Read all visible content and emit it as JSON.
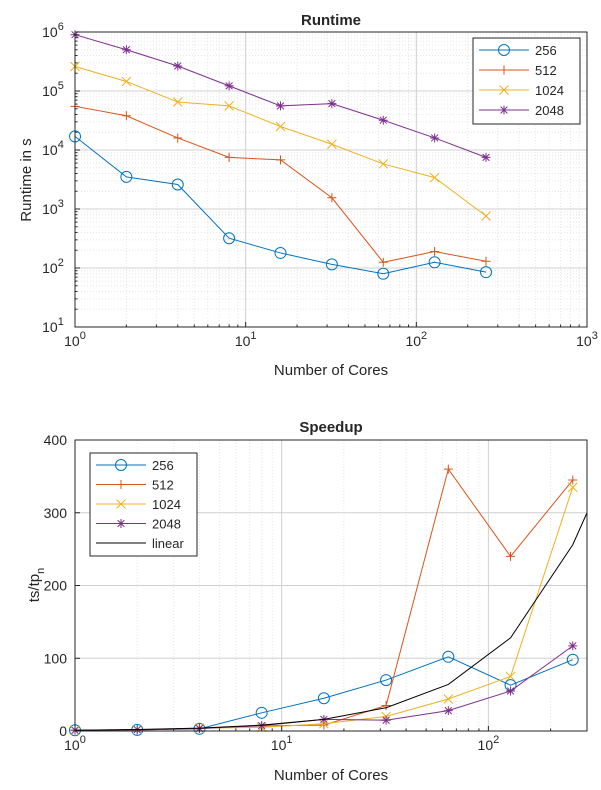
{
  "colors": {
    "256": "#0072BD",
    "512": "#D95319",
    "1024": "#EDB120",
    "2048": "#7E2F8E",
    "linear": "#000000",
    "axis": "#262626",
    "grid": "#d9d9d9"
  },
  "chart_data": [
    {
      "type": "line",
      "title": "Runtime",
      "xlabel": "Number of Cores",
      "ylabel": "Runtime in s",
      "xscale": "log",
      "yscale": "log",
      "xlim": [
        1,
        1000
      ],
      "ylim": [
        10,
        1000000
      ],
      "grid": true,
      "minor_grid": true,
      "legend_position": "top-right",
      "x_ticks": [
        {
          "base": "10",
          "exp": "0"
        },
        {
          "base": "10",
          "exp": "1"
        },
        {
          "base": "10",
          "exp": "2"
        },
        {
          "base": "10",
          "exp": "3"
        }
      ],
      "y_ticks": [
        {
          "base": "10",
          "exp": "1"
        },
        {
          "base": "10",
          "exp": "2"
        },
        {
          "base": "10",
          "exp": "3"
        },
        {
          "base": "10",
          "exp": "4"
        },
        {
          "base": "10",
          "exp": "5"
        },
        {
          "base": "10",
          "exp": "6"
        }
      ],
      "x": [
        1,
        2,
        4,
        8,
        16,
        32,
        64,
        128,
        256
      ],
      "series": [
        {
          "name": "256",
          "marker": "circle",
          "color": "#0072BD",
          "values": [
            17000,
            3500,
            2600,
            320,
            180,
            115,
            80,
            125,
            85
          ]
        },
        {
          "name": "512",
          "marker": "plus",
          "color": "#D95319",
          "values": [
            55000,
            38000,
            16000,
            7500,
            6800,
            1550,
            125,
            190,
            130
          ]
        },
        {
          "name": "1024",
          "marker": "x",
          "color": "#EDB120",
          "values": [
            260000,
            145000,
            65000,
            56000,
            25000,
            12500,
            5800,
            3400,
            760
          ]
        },
        {
          "name": "2048",
          "marker": "asterisk",
          "color": "#7E2F8E",
          "values": [
            900000,
            500000,
            265000,
            122000,
            56000,
            61000,
            32000,
            16000,
            7500
          ]
        }
      ]
    },
    {
      "type": "line",
      "title": "Speedup",
      "xlabel": "Number of Cores",
      "ylabel": "ts/tp",
      "ylabel_sub": "n",
      "xscale": "log",
      "yscale": "linear",
      "xlim": [
        1,
        300
      ],
      "ylim": [
        0,
        400
      ],
      "grid": true,
      "minor_grid": true,
      "legend_position": "top-left",
      "x_ticks": [
        {
          "base": "10",
          "exp": "0"
        },
        {
          "base": "10",
          "exp": "1"
        },
        {
          "base": "10",
          "exp": "2"
        }
      ],
      "y_ticks": [
        "0",
        "100",
        "200",
        "300",
        "400"
      ],
      "x": [
        1,
        2,
        4,
        8,
        16,
        32,
        64,
        128,
        256
      ],
      "series": [
        {
          "name": "256",
          "marker": "circle",
          "color": "#0072BD",
          "values": [
            1,
            1.5,
            3,
            25,
            45,
            70,
            102,
            63,
            98
          ]
        },
        {
          "name": "512",
          "marker": "plus",
          "color": "#D95319",
          "values": [
            1,
            1.5,
            3.5,
            7,
            8,
            35,
            360,
            240,
            345
          ]
        },
        {
          "name": "1024",
          "marker": "x",
          "color": "#EDB120",
          "values": [
            1,
            1.8,
            4,
            5,
            10,
            20,
            44,
            75,
            335
          ]
        },
        {
          "name": "2048",
          "marker": "asterisk",
          "color": "#7E2F8E",
          "values": [
            1,
            1.8,
            3.4,
            7.4,
            16,
            14.8,
            28,
            55,
            117
          ]
        },
        {
          "name": "linear",
          "marker": "none",
          "color": "#000000",
          "x": [
            1,
            2,
            4,
            8,
            16,
            32,
            64,
            128,
            256,
            300
          ],
          "values": [
            1,
            2,
            4,
            8,
            16,
            32,
            64,
            128,
            256,
            300
          ]
        }
      ]
    }
  ]
}
